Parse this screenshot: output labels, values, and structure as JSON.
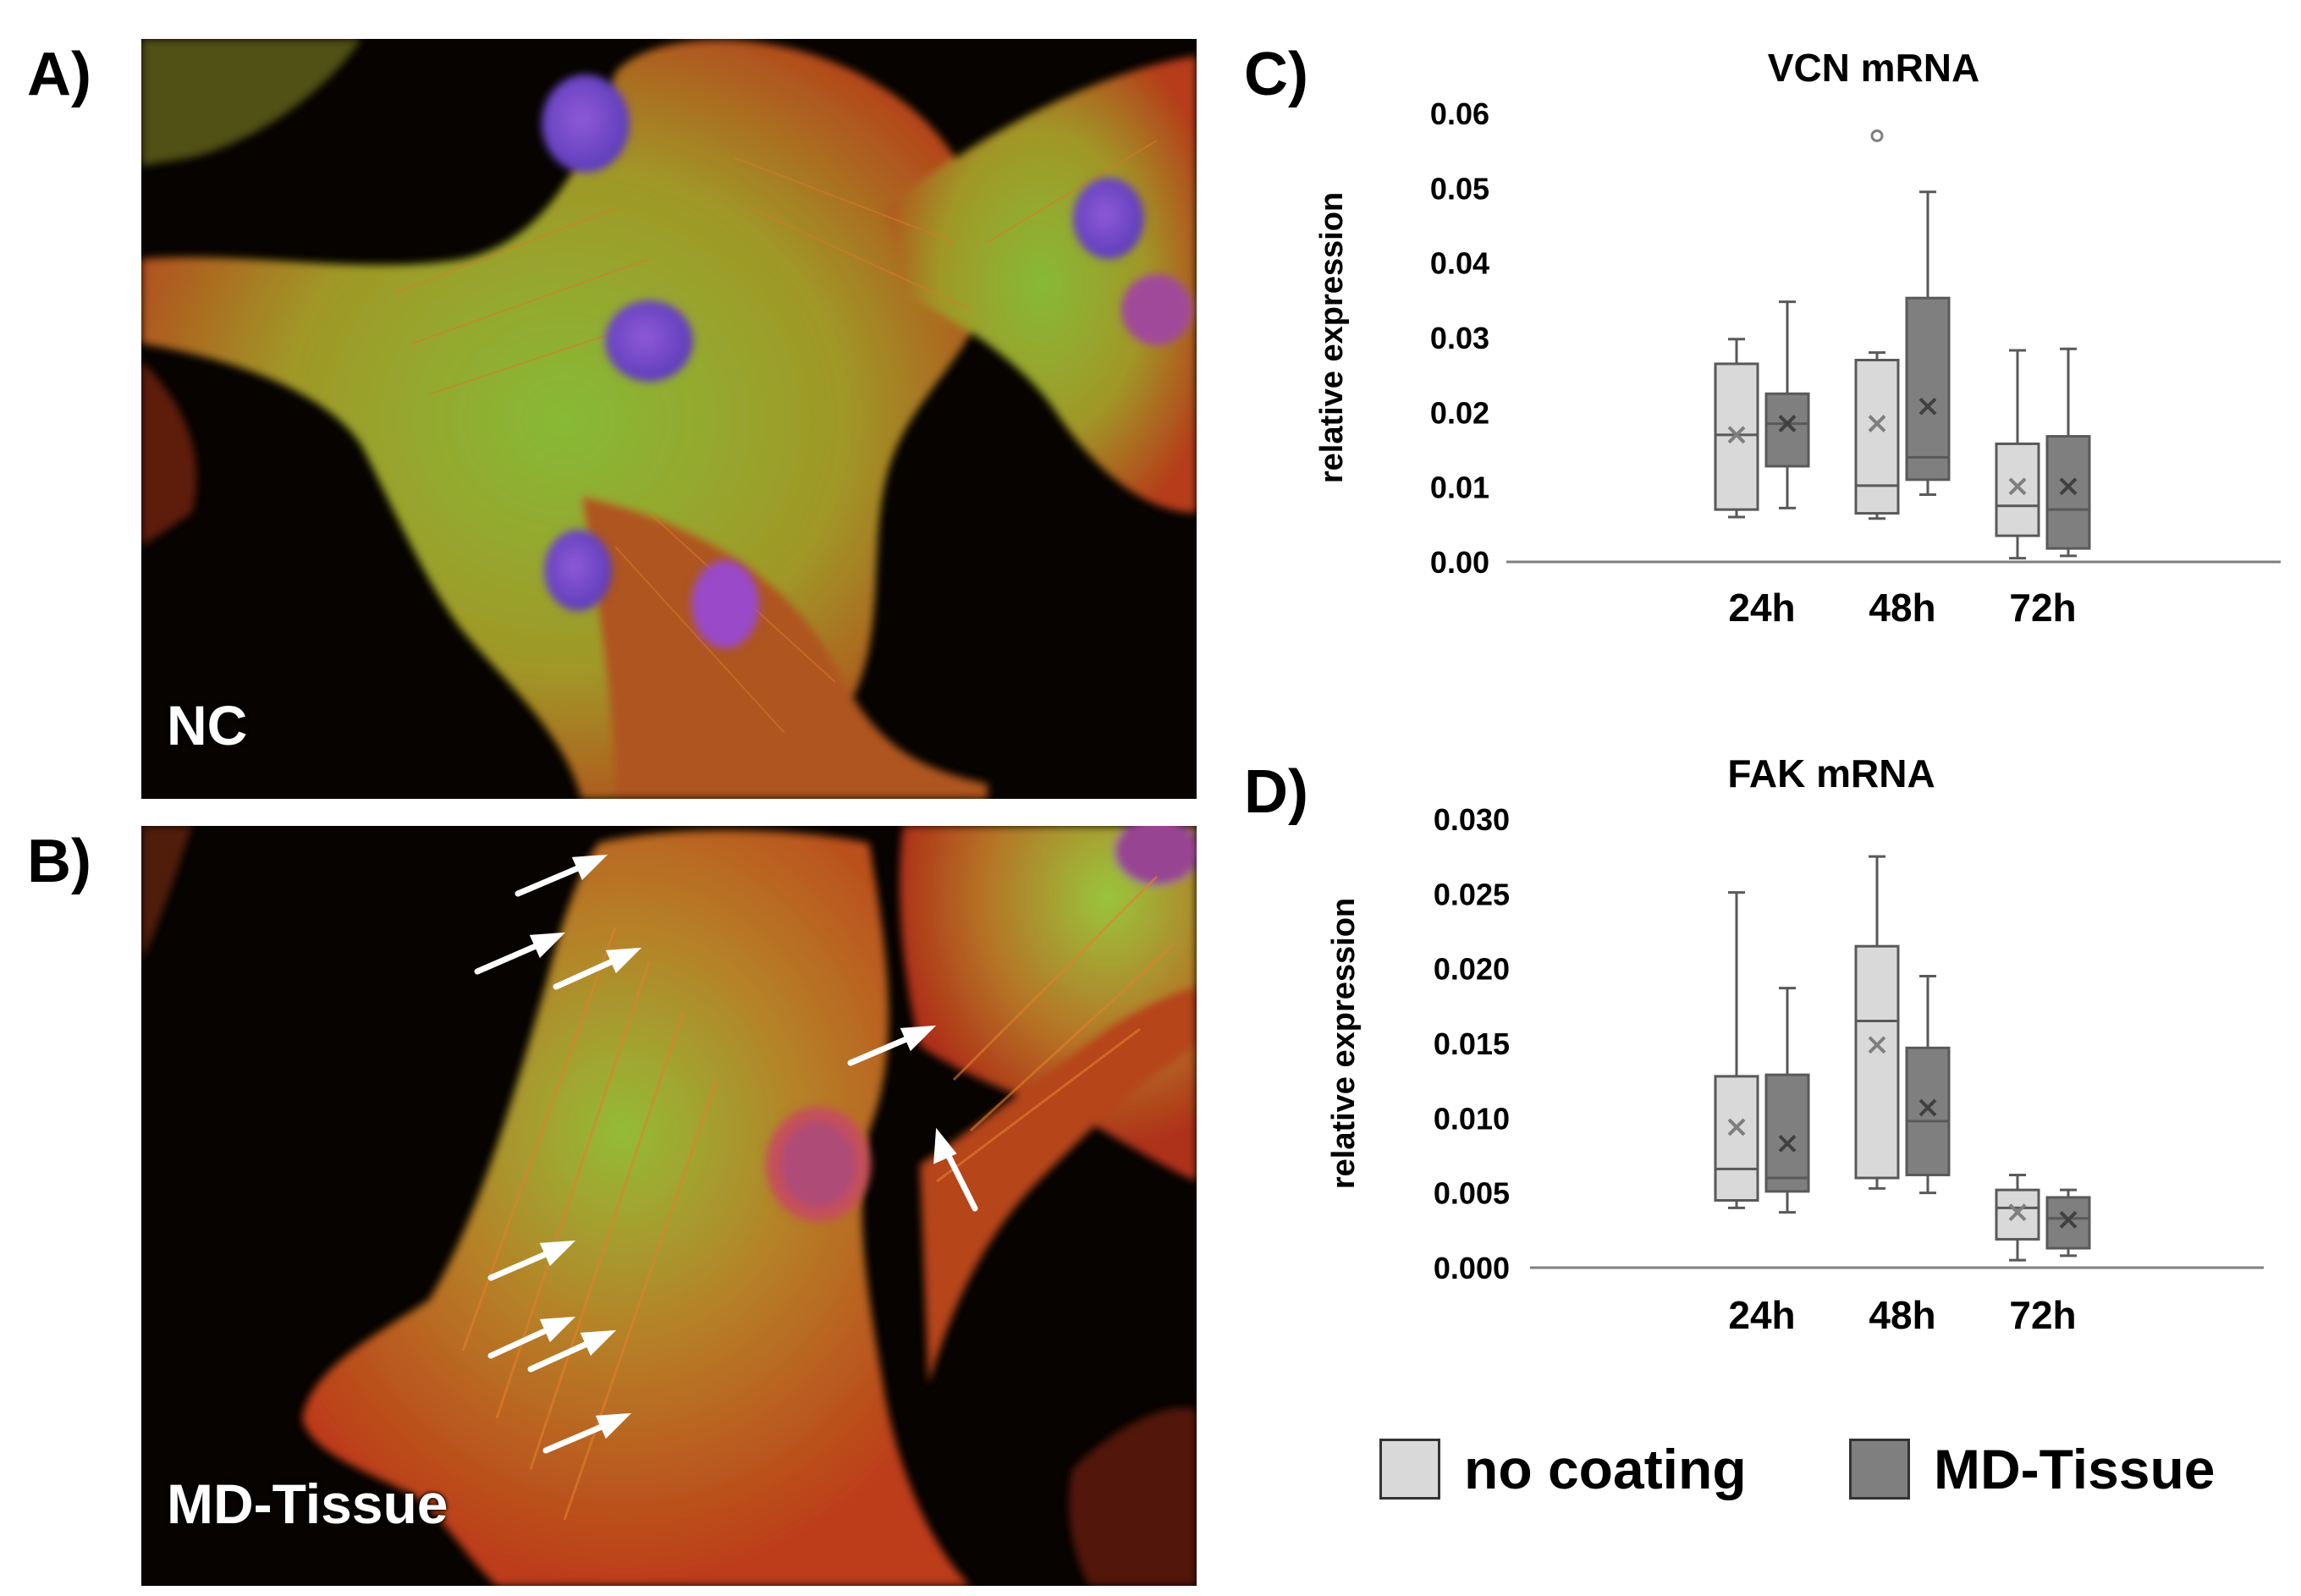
{
  "panels": {
    "A": {
      "letter": "A)",
      "label": "NC"
    },
    "B": {
      "letter": "B)",
      "label": "MD-Tissue"
    },
    "C": {
      "letter": "C)"
    },
    "D": {
      "letter": "D)"
    }
  },
  "colors": {
    "no_coating": "#d9d9d9",
    "md_tissue": "#7f7f7f",
    "box_stroke": "#595959",
    "axis": "#7f7f7f"
  },
  "legend": {
    "items": [
      {
        "label": "no coating",
        "color": "#d9d9d9"
      },
      {
        "label": "MD-Tissue",
        "color": "#7f7f7f"
      }
    ]
  },
  "chart_data": [
    {
      "type": "box",
      "title": "VCN mRNA",
      "ylabel": "relative expression",
      "xlabel": "",
      "ylim": [
        0,
        0.06
      ],
      "yticks": [
        "0.00",
        "0.01",
        "0.02",
        "0.03",
        "0.04",
        "0.05",
        "0.06"
      ],
      "yticks_values": [
        0,
        0.01,
        0.02,
        0.03,
        0.04,
        0.05,
        0.06
      ],
      "categories": [
        "24h",
        "48h",
        "72h"
      ],
      "series": [
        {
          "name": "no coating",
          "boxes": [
            {
              "min": 0.006,
              "q1": 0.007,
              "median": 0.017,
              "q3": 0.0265,
              "max": 0.0298,
              "mean": 0.017,
              "outliers": []
            },
            {
              "min": 0.0058,
              "q1": 0.0065,
              "median": 0.0102,
              "q3": 0.027,
              "max": 0.028,
              "mean": 0.0185,
              "outliers": [
                0.057
              ]
            },
            {
              "min": 0.0005,
              "q1": 0.0035,
              "median": 0.0075,
              "q3": 0.0158,
              "max": 0.0283,
              "mean": 0.0101,
              "outliers": []
            }
          ]
        },
        {
          "name": "MD-Tissue",
          "boxes": [
            {
              "min": 0.0072,
              "q1": 0.0128,
              "median": 0.0185,
              "q3": 0.0225,
              "max": 0.0348,
              "mean": 0.0185,
              "outliers": []
            },
            {
              "min": 0.009,
              "q1": 0.011,
              "median": 0.014,
              "q3": 0.0353,
              "max": 0.0495,
              "mean": 0.0208,
              "outliers": []
            },
            {
              "min": 0.0008,
              "q1": 0.0018,
              "median": 0.007,
              "q3": 0.0168,
              "max": 0.0285,
              "mean": 0.0101,
              "outliers": []
            }
          ]
        }
      ]
    },
    {
      "type": "box",
      "title": "FAK mRNA",
      "ylabel": "relative expression",
      "xlabel": "",
      "ylim": [
        0,
        0.03
      ],
      "yticks": [
        "0.000",
        "0.005",
        "0.010",
        "0.015",
        "0.020",
        "0.025",
        "0.030"
      ],
      "yticks_values": [
        0,
        0.005,
        0.01,
        0.015,
        0.02,
        0.025,
        0.03
      ],
      "categories": [
        "24h",
        "48h",
        "72h"
      ],
      "series": [
        {
          "name": "no coating",
          "boxes": [
            {
              "min": 0.004,
              "q1": 0.0045,
              "median": 0.0066,
              "q3": 0.0128,
              "max": 0.0251,
              "mean": 0.0094,
              "outliers": []
            },
            {
              "min": 0.0053,
              "q1": 0.006,
              "median": 0.0165,
              "q3": 0.0215,
              "max": 0.0275,
              "mean": 0.0149,
              "outliers": []
            },
            {
              "min": 0.0005,
              "q1": 0.0019,
              "median": 0.004,
              "q3": 0.0052,
              "max": 0.0062,
              "mean": 0.0037,
              "outliers": []
            }
          ]
        },
        {
          "name": "MD-Tissue",
          "boxes": [
            {
              "min": 0.0037,
              "q1": 0.0051,
              "median": 0.006,
              "q3": 0.0129,
              "max": 0.0187,
              "mean": 0.0083,
              "outliers": []
            },
            {
              "min": 0.005,
              "q1": 0.0062,
              "median": 0.0098,
              "q3": 0.0147,
              "max": 0.0195,
              "mean": 0.0107,
              "outliers": []
            },
            {
              "min": 0.0008,
              "q1": 0.0013,
              "median": 0.0033,
              "q3": 0.0047,
              "max": 0.0052,
              "mean": 0.0032,
              "outliers": []
            }
          ]
        }
      ]
    }
  ]
}
